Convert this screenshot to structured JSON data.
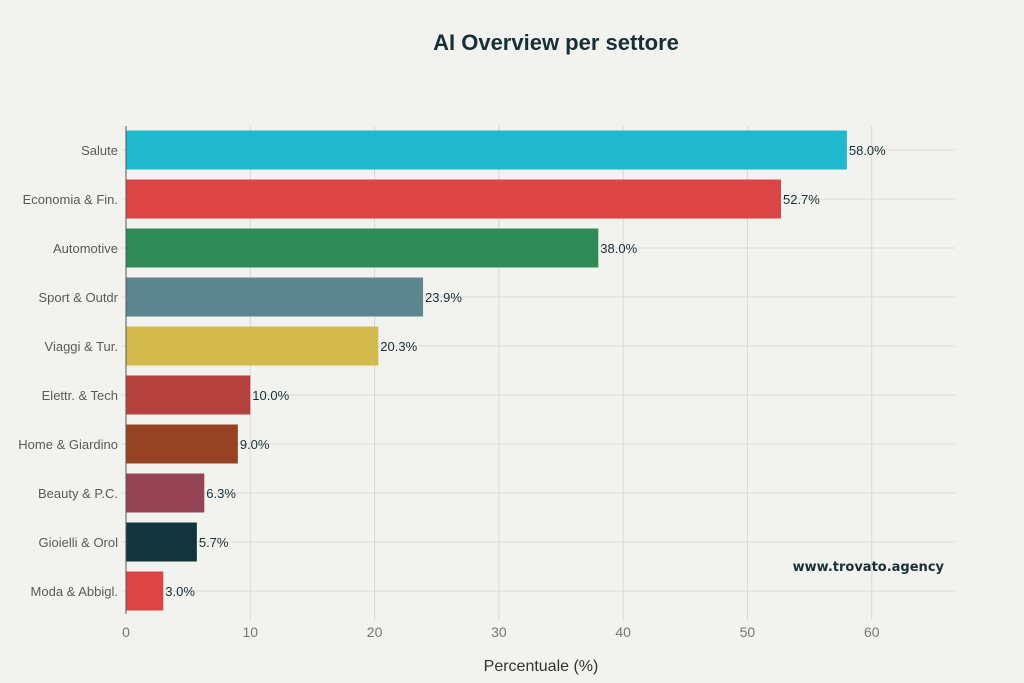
{
  "chart_data": {
    "type": "bar",
    "orientation": "horizontal",
    "title": "AI Overview per settore",
    "xlabel": "Percentuale (%)",
    "ylabel": "",
    "xlim": [
      0,
      66.7
    ],
    "xticks": [
      0,
      10,
      20,
      30,
      40,
      50,
      60
    ],
    "grid": true,
    "categories": [
      "Salute",
      "Economia & Fin.",
      "Automotive",
      "Sport & Outdr",
      "Viaggi & Tur.",
      "Elettr. & Tech",
      "Home & Giardino",
      "Beauty & P.C.",
      "Gioielli & Orol",
      "Moda & Abbigl."
    ],
    "values": [
      58.0,
      52.7,
      38.0,
      23.9,
      20.3,
      10.0,
      9.0,
      6.3,
      5.7,
      3.0
    ],
    "data_labels": [
      "58.0%",
      "52.7%",
      "38.0%",
      "23.9%",
      "20.3%",
      "10.0%",
      "9.0%",
      "6.3%",
      "5.7%",
      "3.0%"
    ],
    "colors": [
      "#1fb8cd",
      "#db4545",
      "#2e8b57",
      "#5d878f",
      "#d2ba4c",
      "#b4413c",
      "#964325",
      "#944454",
      "#13343b",
      "#db4545"
    ]
  },
  "watermark": "www.trovato.agency"
}
